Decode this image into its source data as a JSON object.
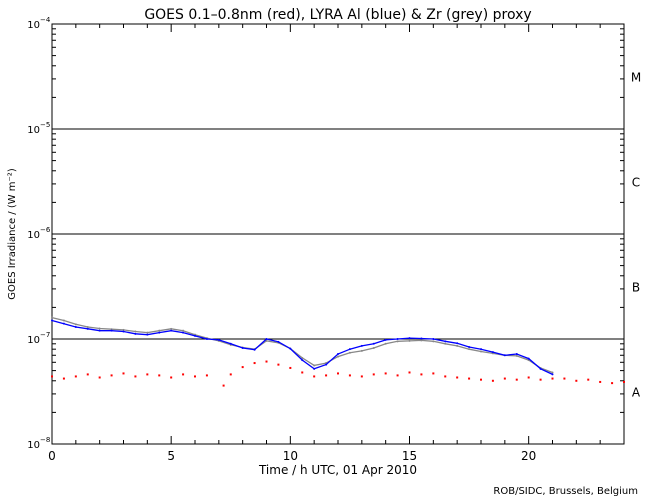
{
  "chart_data": {
    "type": "scatter",
    "title": "GOES 0.1–0.8nm (red), LYRA Al (blue) & Zr (grey) proxy",
    "xlabel": "Time / h UTC, 01 Apr 2010",
    "ylabel": "GOES Irradiance / (W m⁻²)",
    "credit": "ROB/SIDC, Brussels, Belgium",
    "xlim": [
      0,
      24
    ],
    "ylim_log10": [
      -8,
      -4
    ],
    "x_ticks": [
      0,
      5,
      10,
      15,
      20
    ],
    "y_ticks": [
      {
        "exp": -8,
        "label": "10",
        "sup": "−8"
      },
      {
        "exp": -7,
        "label": "10",
        "sup": "−7"
      },
      {
        "exp": -6,
        "label": "10",
        "sup": "−6"
      },
      {
        "exp": -5,
        "label": "10",
        "sup": "−5"
      },
      {
        "exp": -4,
        "label": "10",
        "sup": "−4"
      }
    ],
    "flare_class_lines": [
      1e-07,
      1e-06,
      1e-05
    ],
    "flare_classes": [
      {
        "label": "A",
        "value": 3.16e-08
      },
      {
        "label": "B",
        "value": 3.16e-07
      },
      {
        "label": "C",
        "value": 3.16e-06
      },
      {
        "label": "M",
        "value": 3.16e-05
      }
    ],
    "series": [
      {
        "name": "GOES 0.1–0.8nm",
        "color": "#ff0000",
        "style": "points",
        "x": [
          0,
          0.5,
          1,
          1.5,
          2,
          2.5,
          3,
          3.5,
          4,
          4.5,
          5,
          5.5,
          6,
          6.5,
          7.2,
          7.5,
          8,
          8.5,
          9,
          9.5,
          10,
          10.5,
          11,
          11.5,
          12,
          12.5,
          13,
          13.5,
          14,
          14.5,
          15,
          15.5,
          16,
          16.5,
          17,
          17.5,
          18,
          18.5,
          19,
          19.5,
          20,
          20.5,
          21,
          21.5,
          22,
          22.5,
          23,
          23.5,
          24
        ],
        "y": [
          4.4e-08,
          4.2e-08,
          4.4e-08,
          4.6e-08,
          4.3e-08,
          4.5e-08,
          4.7e-08,
          4.4e-08,
          4.6e-08,
          4.5e-08,
          4.3e-08,
          4.6e-08,
          4.4e-08,
          4.5e-08,
          3.6e-08,
          4.6e-08,
          5.4e-08,
          5.9e-08,
          6.1e-08,
          5.7e-08,
          5.3e-08,
          4.8e-08,
          4.4e-08,
          4.5e-08,
          4.7e-08,
          4.5e-08,
          4.4e-08,
          4.6e-08,
          4.7e-08,
          4.5e-08,
          4.8e-08,
          4.6e-08,
          4.7e-08,
          4.4e-08,
          4.3e-08,
          4.2e-08,
          4.1e-08,
          4e-08,
          4.2e-08,
          4.1e-08,
          4.3e-08,
          4.1e-08,
          4.2e-08,
          4.2e-08,
          4e-08,
          4.1e-08,
          3.9e-08,
          3.8e-08,
          3.9e-08
        ]
      },
      {
        "name": "LYRA Al proxy",
        "color": "#0000ff",
        "style": "line",
        "x": [
          0,
          0.5,
          1,
          1.5,
          2,
          2.5,
          3,
          3.5,
          4,
          4.5,
          5,
          5.5,
          6,
          6.5,
          7,
          7.5,
          8,
          8.5,
          9,
          9.5,
          10,
          10.5,
          11,
          11.5,
          12,
          12.5,
          13,
          13.5,
          14,
          14.5,
          15,
          15.5,
          16,
          16.5,
          17,
          17.5,
          18,
          18.5,
          19,
          19.5,
          20,
          20.5,
          21
        ],
        "y": [
          1.5e-07,
          1.4e-07,
          1.3e-07,
          1.25e-07,
          1.2e-07,
          1.2e-07,
          1.18e-07,
          1.12e-07,
          1.1e-07,
          1.15e-07,
          1.2e-07,
          1.15e-07,
          1.07e-07,
          1e-07,
          9.8e-08,
          9e-08,
          8.2e-08,
          7.9e-08,
          1e-07,
          9.4e-08,
          8.1e-08,
          6.3e-08,
          5.2e-08,
          5.7e-08,
          7.2e-08,
          8e-08,
          8.6e-08,
          9e-08,
          9.8e-08,
          1e-07,
          1.02e-07,
          1.01e-07,
          1e-07,
          9.5e-08,
          9.1e-08,
          8.4e-08,
          8e-08,
          7.5e-08,
          7e-08,
          7.2e-08,
          6.5e-08,
          5.2e-08,
          4.6e-08
        ]
      },
      {
        "name": "LYRA Zr proxy",
        "color": "#888888",
        "style": "line",
        "x": [
          0,
          0.5,
          1,
          1.5,
          2,
          2.5,
          3,
          3.5,
          4,
          4.5,
          5,
          5.5,
          6,
          6.5,
          7,
          7.5,
          8,
          8.5,
          9,
          9.5,
          10,
          10.5,
          11,
          11.5,
          12,
          12.5,
          13,
          13.5,
          14,
          14.5,
          15,
          15.5,
          16,
          16.5,
          17,
          17.5,
          18,
          18.5,
          19,
          19.5,
          20,
          20.5,
          21
        ],
        "y": [
          1.6e-07,
          1.5e-07,
          1.38e-07,
          1.3e-07,
          1.26e-07,
          1.24e-07,
          1.22e-07,
          1.18e-07,
          1.15e-07,
          1.2e-07,
          1.25e-07,
          1.2e-07,
          1.1e-07,
          1.02e-07,
          9.6e-08,
          8.8e-08,
          8.3e-08,
          8e-08,
          9.6e-08,
          9.2e-08,
          8.1e-08,
          6.6e-08,
          5.6e-08,
          5.9e-08,
          6.8e-08,
          7.4e-08,
          7.7e-08,
          8.2e-08,
          9e-08,
          9.5e-08,
          9.6e-08,
          9.7e-08,
          9.5e-08,
          9e-08,
          8.6e-08,
          8e-08,
          7.6e-08,
          7.3e-08,
          7e-08,
          6.9e-08,
          6.3e-08,
          5.3e-08,
          4.8e-08
        ]
      }
    ]
  }
}
